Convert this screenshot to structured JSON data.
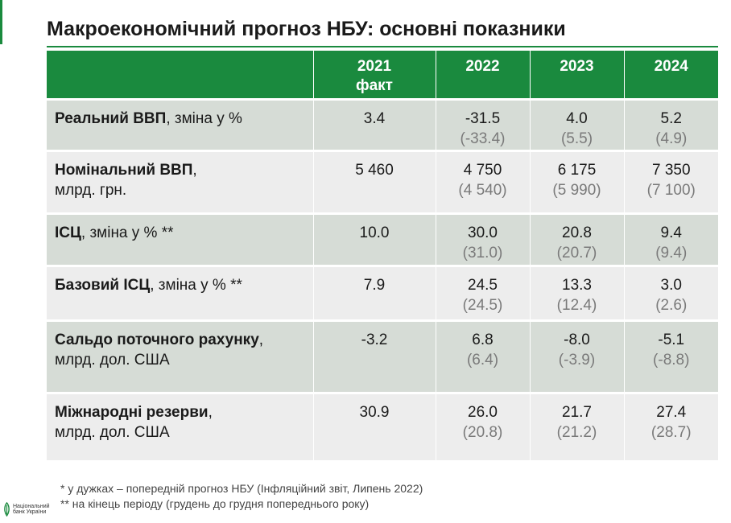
{
  "title": "Макроекономічний прогноз НБУ: основні показники",
  "header": {
    "columns": [
      {
        "line1": "2021",
        "line2": "факт"
      },
      {
        "line1": "2022",
        "line2": ""
      },
      {
        "line1": "2023",
        "line2": ""
      },
      {
        "line1": "2024",
        "line2": ""
      }
    ]
  },
  "rows": [
    {
      "label_bold": "Реальний ВВП",
      "label_rest": ", зміна у %",
      "label_line2": "",
      "values": [
        "3.4",
        "-31.5",
        "4.0",
        "5.2"
      ],
      "previous": [
        "",
        "(-33.4)",
        "(5.5)",
        "(4.9)"
      ]
    },
    {
      "label_bold": "Номінальний ВВП",
      "label_rest": ",",
      "label_line2": "млрд. грн.",
      "values": [
        "5 460",
        "4 750",
        "6 175",
        "7 350"
      ],
      "previous": [
        "",
        "(4 540)",
        "(5 990)",
        "(7 100)"
      ]
    },
    {
      "label_bold": "ІСЦ",
      "label_rest": ", зміна у % **",
      "label_line2": "",
      "values": [
        "10.0",
        "30.0",
        "20.8",
        "9.4"
      ],
      "previous": [
        "",
        "(31.0)",
        "(20.7)",
        "(9.4)"
      ]
    },
    {
      "label_bold": "Базовий ІСЦ",
      "label_rest": ", зміна у % **",
      "label_line2": "",
      "values": [
        "7.9",
        "24.5",
        "13.3",
        "3.0"
      ],
      "previous": [
        "",
        "(24.5)",
        "(12.4)",
        "(2.6)"
      ]
    },
    {
      "label_bold": "Сальдо поточного рахунку",
      "label_rest": ",",
      "label_line2": "млрд. дол. США",
      "values": [
        "-3.2",
        "6.8",
        "-8.0",
        "-5.1"
      ],
      "previous": [
        "",
        "(6.4)",
        "(-3.9)",
        "(-8.8)"
      ]
    },
    {
      "label_bold": "Міжнародні резерви",
      "label_rest": ",",
      "label_line2": "млрд. дол. США",
      "values": [
        "30.9",
        "26.0",
        "21.7",
        "27.4"
      ],
      "previous": [
        "",
        "(20.8)",
        "(21.2)",
        "(28.7)"
      ]
    }
  ],
  "notes": [
    "* у дужках – попередній прогноз НБУ (Інфляційний звіт, Липень 2022)",
    "** на кінець періоду (грудень до грудня попереднього року)"
  ],
  "logo": {
    "line1": "Національний",
    "line2": "банк України",
    "icon": "nbu-logo-icon"
  },
  "colors": {
    "accent": "#1a8a3e",
    "row_dark": "#d6dcd6",
    "row_light": "#ededed",
    "previous_text": "#7a7a7a"
  }
}
